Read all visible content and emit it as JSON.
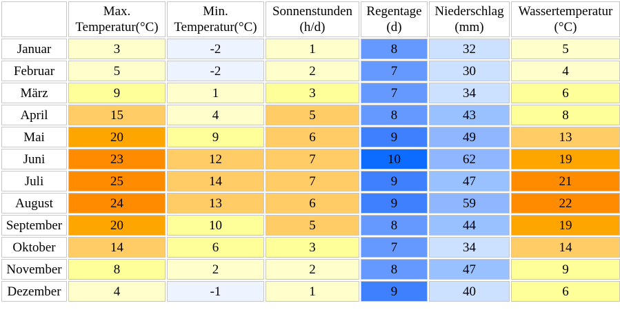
{
  "colors": {
    "heat": [
      "#eef4ff",
      "#ffffcc",
      "#ffff99",
      "#ffcc66",
      "#ffa500",
      "#ff8c00"
    ],
    "rain_days": [
      "#6699ff",
      "#3f80ff",
      "#0b6cff"
    ],
    "precip": [
      "#cce0ff",
      "#99c0ff",
      "#8fb6ff"
    ]
  },
  "headers": [
    {
      "line1": "",
      "line2": ""
    },
    {
      "line1": "Max.",
      "line2": "Temperatur(°C)"
    },
    {
      "line1": "Min.",
      "line2": "Temperatur(°C)"
    },
    {
      "line1": "Sonnenstunden",
      "line2": "(h/d)"
    },
    {
      "line1": "Regentage",
      "line2": "(d)"
    },
    {
      "line1": "Niederschlag",
      "line2": "(mm)"
    },
    {
      "line1": "Wassertemperatur",
      "line2": "(°C)"
    }
  ],
  "rows": [
    {
      "month": "Januar",
      "max": "3",
      "min": "-2",
      "sun": "1",
      "rain_days": "8",
      "precip": "32",
      "water": "5"
    },
    {
      "month": "Februar",
      "max": "5",
      "min": "-2",
      "sun": "2",
      "rain_days": "7",
      "precip": "30",
      "water": "4"
    },
    {
      "month": "März",
      "max": "9",
      "min": "1",
      "sun": "3",
      "rain_days": "7",
      "precip": "34",
      "water": "6"
    },
    {
      "month": "April",
      "max": "15",
      "min": "4",
      "sun": "5",
      "rain_days": "8",
      "precip": "43",
      "water": "8"
    },
    {
      "month": "Mai",
      "max": "20",
      "min": "9",
      "sun": "6",
      "rain_days": "9",
      "precip": "49",
      "water": "13"
    },
    {
      "month": "Juni",
      "max": "23",
      "min": "12",
      "sun": "7",
      "rain_days": "10",
      "precip": "62",
      "water": "19"
    },
    {
      "month": "Juli",
      "max": "25",
      "min": "14",
      "sun": "7",
      "rain_days": "9",
      "precip": "47",
      "water": "21"
    },
    {
      "month": "August",
      "max": "24",
      "min": "13",
      "sun": "6",
      "rain_days": "9",
      "precip": "59",
      "water": "22"
    },
    {
      "month": "September",
      "max": "20",
      "min": "10",
      "sun": "5",
      "rain_days": "8",
      "precip": "44",
      "water": "19"
    },
    {
      "month": "Oktober",
      "max": "14",
      "min": "6",
      "sun": "3",
      "rain_days": "7",
      "precip": "34",
      "water": "14"
    },
    {
      "month": "November",
      "max": "8",
      "min": "2",
      "sun": "2",
      "rain_days": "8",
      "precip": "47",
      "water": "9"
    },
    {
      "month": "Dezember",
      "max": "4",
      "min": "-1",
      "sun": "1",
      "rain_days": "9",
      "precip": "40",
      "water": "6"
    }
  ]
}
